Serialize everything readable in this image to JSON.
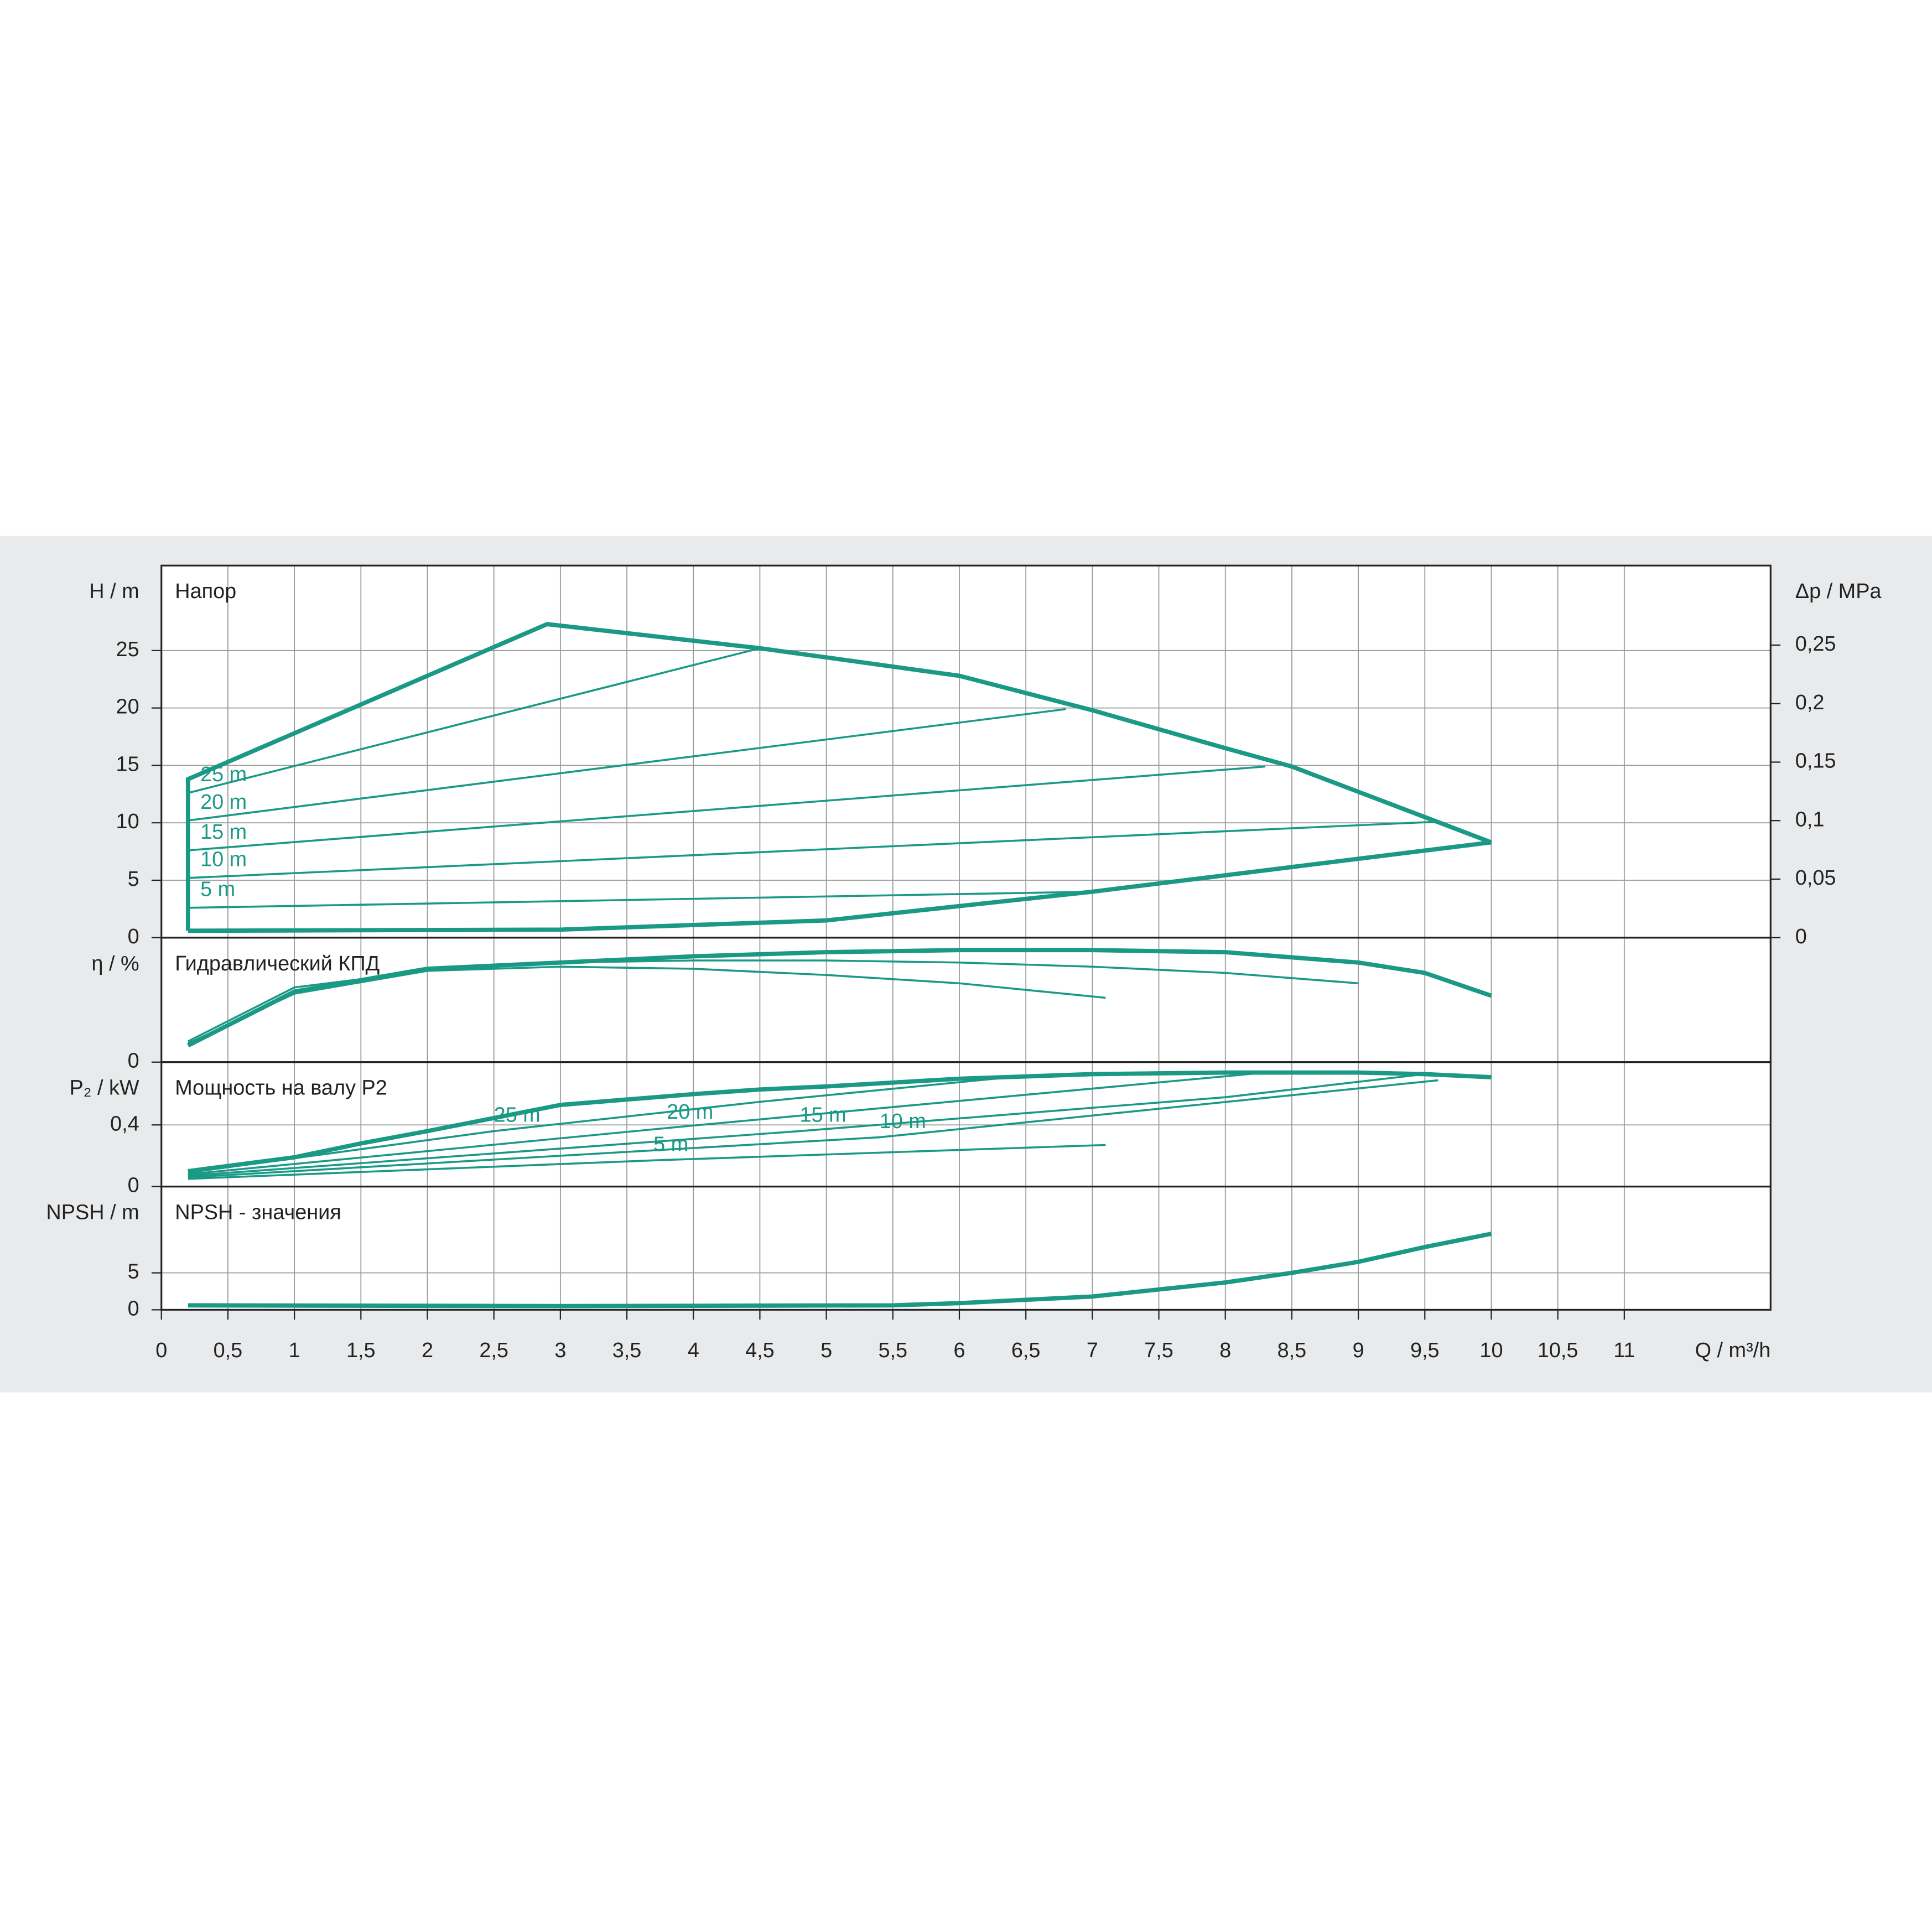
{
  "chart_data": [
    {
      "type": "line",
      "title": "Напор",
      "y_label": "H / m",
      "y2_label": "Δp / MPa",
      "ylim": [
        0,
        32.4
      ],
      "yticks": [
        0,
        5,
        10,
        15,
        20,
        25
      ],
      "y2lim": [
        0,
        0.318
      ],
      "y2ticks": [
        0,
        {
          "value": 0.05,
          "label": "0,05"
        },
        {
          "value": 0.1,
          "label": "0,1"
        },
        {
          "value": 0.15,
          "label": "0,15"
        },
        {
          "value": 0.2,
          "label": "0,2"
        },
        {
          "value": 0.25,
          "label": "0,25"
        }
      ],
      "grid": true,
      "series": [
        {
          "color": "#1a9985",
          "x": [
            0.2,
            0.2,
            2.9,
            4.5,
            6,
            7,
            8,
            8.5,
            9,
            9.5,
            10
          ],
          "values": [
            0.6,
            13.8,
            27.3,
            25.2,
            22.8,
            19.8,
            16.5,
            14.9,
            12.7,
            10.5,
            8.3
          ]
        },
        {
          "color": "#1a9985",
          "x": [
            0.2,
            3,
            5,
            7,
            10
          ],
          "values": [
            0.6,
            0.7,
            1.5,
            4.0,
            8.3
          ]
        },
        {
          "color": "#1a9985",
          "label": "25 m",
          "x": [
            0.2,
            4.5
          ],
          "values": [
            12.6,
            25.2
          ]
        },
        {
          "color": "#1a9985",
          "label": "20 m",
          "x": [
            0.2,
            6.8
          ],
          "values": [
            10.2,
            19.9
          ]
        },
        {
          "color": "#1a9985",
          "label": "15 m",
          "x": [
            0.2,
            8.3
          ],
          "values": [
            7.6,
            14.9
          ]
        },
        {
          "color": "#1a9985",
          "label": "10 m",
          "x": [
            0.2,
            9.6
          ],
          "values": [
            5.2,
            10.1
          ]
        },
        {
          "color": "#1a9985",
          "label": "5 m",
          "x": [
            0.2,
            7
          ],
          "values": [
            2.6,
            4.0
          ]
        }
      ]
    },
    {
      "type": "line",
      "title": "Гидравлический КПД",
      "y_label": "η / %",
      "ylim": [
        0,
        60
      ],
      "yticks": [
        0
      ],
      "grid": true,
      "series": [
        {
          "color": "#1a9985",
          "x": [
            0.2,
            1,
            2,
            3,
            4,
            5,
            6,
            7,
            8,
            9,
            9.5,
            10
          ],
          "values": [
            8,
            34,
            45,
            48,
            51,
            53,
            54,
            54,
            53,
            48,
            43,
            32
          ]
        },
        {
          "color": "#1a9985",
          "x": [
            0.2,
            1,
            2,
            3,
            4,
            5,
            6,
            7,
            8,
            9
          ],
          "values": [
            9,
            33,
            44,
            48,
            49,
            49,
            48,
            46,
            43,
            38
          ]
        },
        {
          "color": "#1a9985",
          "x": [
            0.2,
            1,
            2,
            3,
            4,
            5,
            6,
            7.1
          ],
          "values": [
            10,
            36,
            44,
            46,
            45,
            42,
            38,
            31
          ]
        }
      ]
    },
    {
      "type": "line",
      "title": "Мощность на валу P2",
      "y_label": "P₂ / kW",
      "ylim": [
        0,
        0.808
      ],
      "yticks": [
        0,
        {
          "value": 0.4,
          "label": "0,4"
        }
      ],
      "grid": true,
      "series": [
        {
          "color": "#1a9985",
          "x": [
            0.2,
            1,
            1.5,
            2,
            3,
            4,
            4.5,
            5,
            6,
            7,
            8,
            9,
            9.5,
            10
          ],
          "values": [
            0.1,
            0.19,
            0.28,
            0.36,
            0.53,
            0.6,
            0.63,
            0.65,
            0.7,
            0.73,
            0.74,
            0.74,
            0.73,
            0.71
          ]
        },
        {
          "color": "#1a9985",
          "label": "25 m",
          "x": [
            0.2,
            2.5,
            4.5,
            6.5
          ],
          "values": [
            0.09,
            0.36,
            0.55,
            0.72
          ]
        },
        {
          "color": "#1a9985",
          "label": "20 m",
          "x": [
            0.2,
            3.8,
            6.8,
            8.3
          ],
          "values": [
            0.08,
            0.38,
            0.62,
            0.74
          ]
        },
        {
          "color": "#1a9985",
          "label": "15 m",
          "x": [
            0.2,
            4.8,
            8,
            9.5
          ],
          "values": [
            0.07,
            0.36,
            0.58,
            0.73
          ]
        },
        {
          "color": "#1a9985",
          "label": "10 m",
          "x": [
            0.2,
            5.4,
            9.6
          ],
          "values": [
            0.06,
            0.32,
            0.69
          ]
        },
        {
          "color": "#1a9985",
          "label": "5 m",
          "x": [
            0.2,
            3.7,
            7.1
          ],
          "values": [
            0.05,
            0.17,
            0.27
          ]
        }
      ]
    },
    {
      "type": "line",
      "title": "NPSH - значения",
      "y_label": "NPSH / m",
      "x_label": "Q / m³/h",
      "ylim": [
        0,
        16.7
      ],
      "yticks": [
        0,
        5
      ],
      "grid": true,
      "xlim": [
        0,
        12.1
      ],
      "xticks": [
        0,
        {
          "value": 0.5,
          "label": "0,5"
        },
        1,
        {
          "value": 1.5,
          "label": "1,5"
        },
        2,
        {
          "value": 2.5,
          "label": "2,5"
        },
        3,
        {
          "value": 3.5,
          "label": "3,5"
        },
        4,
        {
          "value": 4.5,
          "label": "4,5"
        },
        5,
        {
          "value": 5.5,
          "label": "5,5"
        },
        6,
        {
          "value": 6.5,
          "label": "6,5"
        },
        7,
        {
          "value": 7.5,
          "label": "7,5"
        },
        8,
        {
          "value": 8.5,
          "label": "8,5"
        },
        9,
        {
          "value": 9.5,
          "label": "9,5"
        },
        10,
        {
          "value": 10.5,
          "label": "10,5"
        },
        11
      ],
      "series": [
        {
          "color": "#1a9985",
          "x": [
            0.2,
            3,
            5.5,
            6,
            7,
            8,
            8.5,
            9,
            9.5,
            10
          ],
          "values": [
            0.6,
            0.5,
            0.6,
            0.9,
            1.8,
            3.7,
            5.0,
            6.5,
            8.5,
            10.3
          ]
        }
      ]
    }
  ]
}
